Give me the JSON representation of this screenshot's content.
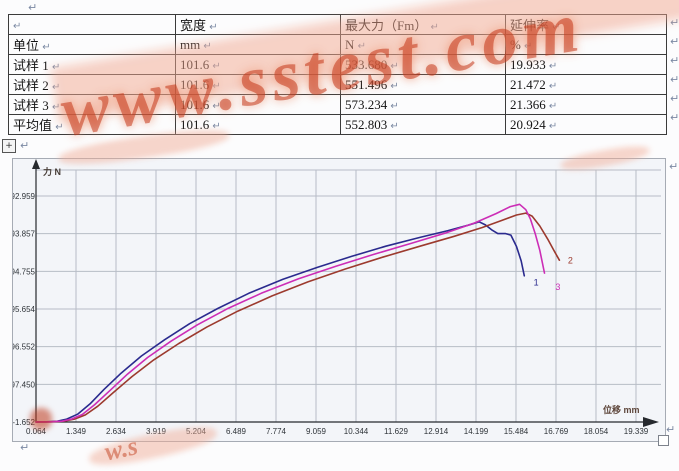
{
  "page": {
    "paragraph_mark": "↵"
  },
  "watermark": {
    "text": "www.sstest.com",
    "fragment_text": "w.s",
    "text_color": "#c13012",
    "band_color": "#f2a890"
  },
  "table": {
    "header": [
      "",
      "宽度",
      "最大力（Fm）",
      "延伸率"
    ],
    "rows": [
      [
        "单位",
        "mm",
        "N",
        "%"
      ],
      [
        "试样 1",
        "101.6",
        "533.680",
        "19.933"
      ],
      [
        "试样 2",
        "101.6",
        "551.496",
        "21.472"
      ],
      [
        "试样 3",
        "101.6",
        "573.234",
        "21.366"
      ],
      [
        "平均值",
        "101.6",
        "552.803",
        "20.924"
      ]
    ]
  },
  "chart_data": {
    "type": "line",
    "title": "",
    "xlabel": "位移 mm",
    "ylabel": "力 N",
    "xlabel_color": "#5d453a",
    "ylabel_color": "#463c36",
    "grid": true,
    "grid_color": "#b7bcc6",
    "axis_color": "#26292e",
    "tick_color": "#2e3338",
    "x_tick_labels": [
      "0.064",
      "1.349",
      "2.634",
      "3.919",
      "5.204",
      "6.489",
      "7.774",
      "9.059",
      "10.344",
      "11.629",
      "12.914",
      "14.199",
      "15.484",
      "16.769",
      "18.054",
      "19.339"
    ],
    "y_tick_labels": [
      "-1.652",
      "97.450",
      "196.552",
      "295.654",
      "394.755",
      "493.857",
      "592.959"
    ],
    "xlim": [
      0.064,
      20.9
    ],
    "ylim": [
      -1.652,
      680
    ],
    "series": [
      {
        "name": "1",
        "color": "#2a2a8e",
        "label_at": [
          16.05,
          358
        ],
        "points": [
          [
            0.064,
            -1.5
          ],
          [
            0.4,
            -1.2
          ],
          [
            0.75,
            0.5
          ],
          [
            1.05,
            6
          ],
          [
            1.4,
            19
          ],
          [
            1.8,
            46
          ],
          [
            2.25,
            84
          ],
          [
            2.8,
            127
          ],
          [
            3.45,
            172
          ],
          [
            4.2,
            215
          ],
          [
            5.0,
            257
          ],
          [
            5.9,
            297
          ],
          [
            6.9,
            337
          ],
          [
            8.0,
            374
          ],
          [
            9.1,
            405
          ],
          [
            10.2,
            434
          ],
          [
            11.3,
            461
          ],
          [
            12.4,
            484
          ],
          [
            13.3,
            502
          ],
          [
            13.95,
            516
          ],
          [
            14.3,
            525
          ],
          [
            14.5,
            517
          ],
          [
            14.7,
            504
          ],
          [
            14.9,
            494
          ],
          [
            15.15,
            494
          ],
          [
            15.32,
            490
          ],
          [
            15.5,
            460
          ],
          [
            15.65,
            422
          ],
          [
            15.75,
            383
          ]
        ]
      },
      {
        "name": "2",
        "color": "#9c3a2e",
        "label_at": [
          17.15,
          415
        ],
        "points": [
          [
            0.064,
            -1.5
          ],
          [
            0.55,
            -1.2
          ],
          [
            0.95,
            0.5
          ],
          [
            1.3,
            6
          ],
          [
            1.65,
            17
          ],
          [
            2.05,
            40
          ],
          [
            2.55,
            76
          ],
          [
            3.15,
            118
          ],
          [
            3.85,
            162
          ],
          [
            4.65,
            205
          ],
          [
            5.55,
            248
          ],
          [
            6.55,
            290
          ],
          [
            7.65,
            330
          ],
          [
            8.8,
            367
          ],
          [
            10.0,
            401
          ],
          [
            11.2,
            432
          ],
          [
            12.4,
            461
          ],
          [
            13.5,
            487
          ],
          [
            14.4,
            510
          ],
          [
            15.0,
            528
          ],
          [
            15.5,
            543
          ],
          [
            15.8,
            548
          ],
          [
            16.0,
            540
          ],
          [
            16.25,
            514
          ],
          [
            16.5,
            480
          ],
          [
            16.7,
            450
          ],
          [
            16.88,
            424
          ]
        ]
      },
      {
        "name": "3",
        "color": "#cc2db6",
        "label_at": [
          16.75,
          345
        ],
        "points": [
          [
            0.064,
            -1.5
          ],
          [
            0.5,
            -1.2
          ],
          [
            0.9,
            0.5
          ],
          [
            1.2,
            6
          ],
          [
            1.55,
            18
          ],
          [
            1.95,
            44
          ],
          [
            2.45,
            82
          ],
          [
            3.0,
            124
          ],
          [
            3.65,
            168
          ],
          [
            4.4,
            211
          ],
          [
            5.25,
            254
          ],
          [
            6.2,
            296
          ],
          [
            7.3,
            337
          ],
          [
            8.5,
            375
          ],
          [
            9.7,
            408
          ],
          [
            10.9,
            439
          ],
          [
            12.1,
            468
          ],
          [
            13.2,
            495
          ],
          [
            14.15,
            522
          ],
          [
            14.85,
            547
          ],
          [
            15.3,
            565
          ],
          [
            15.6,
            571
          ],
          [
            15.8,
            557
          ],
          [
            15.95,
            532
          ],
          [
            16.1,
            494
          ],
          [
            16.25,
            450
          ],
          [
            16.4,
            390
          ]
        ]
      }
    ]
  }
}
